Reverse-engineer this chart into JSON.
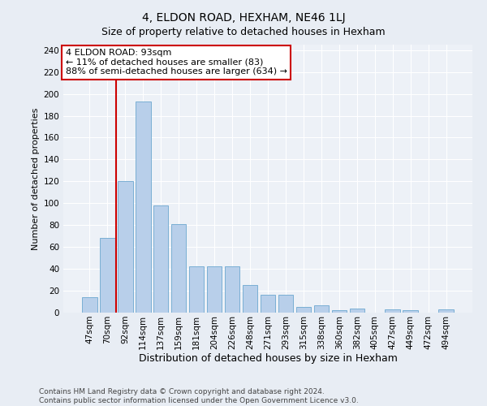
{
  "title": "4, ELDON ROAD, HEXHAM, NE46 1LJ",
  "subtitle": "Size of property relative to detached houses in Hexham",
  "xlabel": "Distribution of detached houses by size in Hexham",
  "ylabel": "Number of detached properties",
  "categories": [
    "47sqm",
    "70sqm",
    "92sqm",
    "114sqm",
    "137sqm",
    "159sqm",
    "181sqm",
    "204sqm",
    "226sqm",
    "248sqm",
    "271sqm",
    "293sqm",
    "315sqm",
    "338sqm",
    "360sqm",
    "382sqm",
    "405sqm",
    "427sqm",
    "449sqm",
    "472sqm",
    "494sqm"
  ],
  "values": [
    14,
    68,
    120,
    193,
    98,
    81,
    42,
    42,
    42,
    25,
    16,
    16,
    5,
    7,
    2,
    4,
    0,
    3,
    2,
    0,
    3
  ],
  "bar_color": "#b8cfea",
  "bar_edge_color": "#7aafd4",
  "annotation_line1": "4 ELDON ROAD: 93sqm",
  "annotation_line2": "← 11% of detached houses are smaller (83)",
  "annotation_line3": "88% of semi-detached houses are larger (634) →",
  "annotation_box_facecolor": "#ffffff",
  "annotation_box_edgecolor": "#cc0000",
  "vline_color": "#cc0000",
  "ylim": [
    0,
    245
  ],
  "yticks": [
    0,
    20,
    40,
    60,
    80,
    100,
    120,
    140,
    160,
    180,
    200,
    220,
    240
  ],
  "footer_line1": "Contains HM Land Registry data © Crown copyright and database right 2024.",
  "footer_line2": "Contains public sector information licensed under the Open Government Licence v3.0.",
  "bg_color": "#e8edf4",
  "plot_bg_color": "#edf1f7",
  "grid_color": "#ffffff",
  "title_fontsize": 10,
  "subtitle_fontsize": 9,
  "xlabel_fontsize": 9,
  "ylabel_fontsize": 8,
  "tick_fontsize": 7.5,
  "footer_fontsize": 6.5,
  "annotation_fontsize": 8
}
